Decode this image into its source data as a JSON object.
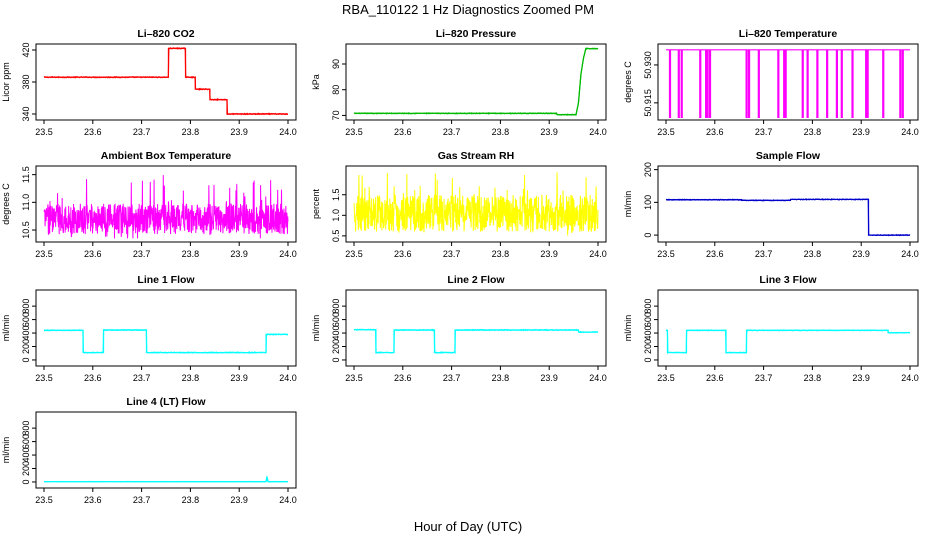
{
  "figure": {
    "title": "RBA_110122  1 Hz Diagnostics Zoomed PM",
    "xlabel": "Hour of Day (UTC)"
  },
  "chart_data": [
    {
      "type": "line",
      "title": "Li–820 CO2",
      "ylabel": "Licor ppm",
      "color": "#ff0000",
      "xlim": [
        23.5,
        24.0
      ],
      "ylim": [
        335,
        425
      ],
      "yticks": [
        340,
        380,
        420
      ],
      "ytick_labels": [
        "340",
        "380",
        "420"
      ],
      "xticks": [
        23.5,
        23.6,
        23.7,
        23.8,
        23.9,
        24.0
      ],
      "xtick_labels": [
        "23.5",
        "23.6",
        "23.7",
        "23.8",
        "23.9",
        "24.0"
      ],
      "series": [
        {
          "name": "CO2",
          "style": "step",
          "noise": 0.6,
          "x": [
            23.5,
            23.755,
            23.755,
            23.79,
            23.79,
            23.81,
            23.81,
            23.84,
            23.84,
            23.875,
            23.875,
            24.0
          ],
          "y": [
            386,
            386,
            422,
            422,
            386,
            386,
            371,
            371,
            358,
            358,
            340,
            340
          ]
        }
      ]
    },
    {
      "type": "line",
      "title": "Li–820 Pressure",
      "ylabel": "kPa",
      "color": "#00bb00",
      "xlim": [
        23.5,
        24.0
      ],
      "ylim": [
        69,
        97
      ],
      "yticks": [
        70,
        80,
        90
      ],
      "ytick_labels": [
        "70",
        "80",
        "90"
      ],
      "xticks": [
        23.5,
        23.6,
        23.7,
        23.8,
        23.9,
        24.0
      ],
      "xtick_labels": [
        "23.5",
        "23.6",
        "23.7",
        "23.8",
        "23.9",
        "24.0"
      ],
      "series": [
        {
          "name": "Pressure",
          "style": "line",
          "noise": 0.15,
          "x": [
            23.5,
            23.915,
            23.916,
            23.955,
            23.96,
            23.965,
            23.97,
            23.975,
            24.0
          ],
          "y": [
            70.8,
            70.8,
            70.3,
            70.3,
            75,
            86,
            92,
            96,
            96
          ]
        }
      ]
    },
    {
      "type": "line",
      "title": "Li–820 Temperature",
      "ylabel": "degrees C",
      "color": "#ff00ff",
      "xlim": [
        23.5,
        24.0
      ],
      "ylim": [
        50.909,
        50.9375
      ],
      "yticks": [
        50.915,
        50.93
      ],
      "ytick_labels": [
        "50.915",
        "50.930"
      ],
      "xticks": [
        23.5,
        23.6,
        23.7,
        23.8,
        23.9,
        24.0
      ],
      "xtick_labels": [
        "23.5",
        "23.6",
        "23.7",
        "23.8",
        "23.9",
        "24.0"
      ],
      "baseline": 50.936,
      "low_value": 50.909,
      "spike_times": [
        23.508,
        23.526,
        23.532,
        23.57,
        23.582,
        23.585,
        23.59,
        23.665,
        23.67,
        23.69,
        23.73,
        23.742,
        23.745,
        23.78,
        23.79,
        23.81,
        23.83,
        23.85,
        23.86,
        23.882,
        23.91,
        23.913,
        23.945,
        23.98,
        23.985
      ]
    },
    {
      "type": "line",
      "title": "Ambient Box Temperature",
      "ylabel": "degrees C",
      "color": "#ff00ff",
      "xlim": [
        23.5,
        24.0
      ],
      "ylim": [
        10.32,
        11.62
      ],
      "yticks": [
        10.5,
        11.0,
        11.5
      ],
      "ytick_labels": [
        "10.5",
        "11.0",
        "11.5"
      ],
      "xticks": [
        23.5,
        23.6,
        23.7,
        23.8,
        23.9,
        24.0
      ],
      "xtick_labels": [
        "23.5",
        "23.6",
        "23.7",
        "23.8",
        "23.9",
        "24.0"
      ],
      "noise_band": {
        "center": 10.7,
        "min": 10.35,
        "max": 11.6,
        "spread": 0.55
      }
    },
    {
      "type": "line",
      "title": "Gas Stream RH",
      "ylabel": "percent",
      "color": "#ffff00",
      "xlim": [
        23.5,
        24.0
      ],
      "ylim": [
        0.4,
        2.15
      ],
      "yticks": [
        0.5,
        1.0,
        1.5
      ],
      "ytick_labels": [
        "0.5",
        "1.0",
        "1.5"
      ],
      "xticks": [
        23.5,
        23.6,
        23.7,
        23.8,
        23.9,
        24.0
      ],
      "xtick_labels": [
        "23.5",
        "23.6",
        "23.7",
        "23.8",
        "23.9",
        "24.0"
      ],
      "noise_band": {
        "center": 1.05,
        "min": 0.5,
        "max": 2.1,
        "spread": 0.9
      }
    },
    {
      "type": "line",
      "title": "Sample Flow",
      "ylabel": "ml/min",
      "color": "#0000cc",
      "xlim": [
        23.5,
        24.0
      ],
      "ylim": [
        -15,
        205
      ],
      "yticks": [
        0,
        100,
        200
      ],
      "ytick_labels": [
        "0",
        "100",
        "200"
      ],
      "xticks": [
        23.5,
        23.6,
        23.7,
        23.8,
        23.9,
        24.0
      ],
      "xtick_labels": [
        "23.5",
        "23.6",
        "23.7",
        "23.8",
        "23.9",
        "24.0"
      ],
      "series": [
        {
          "name": "Sample Flow",
          "style": "step",
          "noise": 1.2,
          "x": [
            23.5,
            23.655,
            23.655,
            23.755,
            23.755,
            23.915,
            23.915,
            24.0
          ],
          "y": [
            108,
            108,
            106,
            106,
            109,
            109,
            0,
            0
          ]
        }
      ]
    },
    {
      "type": "line",
      "title": "Line 1 Flow",
      "ylabel": "ml/min",
      "color": "#00ffff",
      "xlim": [
        23.5,
        24.0
      ],
      "ylim": [
        -60,
        1010
      ],
      "yticks": [
        0,
        200,
        400,
        600,
        800
      ],
      "ytick_labels": [
        "0",
        "200",
        "400",
        "600",
        "800"
      ],
      "xticks": [
        23.5,
        23.6,
        23.7,
        23.8,
        23.9,
        24.0
      ],
      "xtick_labels": [
        "23.5",
        "23.6",
        "23.7",
        "23.8",
        "23.9",
        "24.0"
      ],
      "series": [
        {
          "name": "Line 1",
          "style": "step",
          "noise": 6,
          "x": [
            23.5,
            23.58,
            23.58,
            23.622,
            23.622,
            23.71,
            23.71,
            23.955,
            23.955,
            24.0
          ],
          "y": [
            440,
            440,
            110,
            110,
            445,
            445,
            110,
            110,
            380,
            380
          ]
        }
      ]
    },
    {
      "type": "line",
      "title": "Line 2 Flow",
      "ylabel": "ml/min",
      "color": "#00ffff",
      "xlim": [
        23.5,
        24.0
      ],
      "ylim": [
        -60,
        1010
      ],
      "yticks": [
        0,
        200,
        400,
        600,
        800
      ],
      "ytick_labels": [
        "0",
        "200",
        "400",
        "600",
        "800"
      ],
      "xticks": [
        23.5,
        23.6,
        23.7,
        23.8,
        23.9,
        24.0
      ],
      "xtick_labels": [
        "23.5",
        "23.6",
        "23.7",
        "23.8",
        "23.9",
        "24.0"
      ],
      "series": [
        {
          "name": "Line 2",
          "style": "step",
          "noise": 6,
          "x": [
            23.5,
            23.545,
            23.545,
            23.582,
            23.582,
            23.665,
            23.665,
            23.707,
            23.707,
            23.96,
            23.96,
            24.0
          ],
          "y": [
            450,
            450,
            110,
            110,
            445,
            445,
            110,
            110,
            445,
            445,
            415,
            415
          ]
        }
      ]
    },
    {
      "type": "line",
      "title": "Line 3 Flow",
      "ylabel": "ml/min",
      "color": "#00ffff",
      "xlim": [
        23.5,
        24.0
      ],
      "ylim": [
        -60,
        1010
      ],
      "yticks": [
        0,
        200,
        400,
        600,
        800
      ],
      "ytick_labels": [
        "0",
        "200",
        "400",
        "600",
        "800"
      ],
      "xticks": [
        23.5,
        23.6,
        23.7,
        23.8,
        23.9,
        24.0
      ],
      "xtick_labels": [
        "23.5",
        "23.6",
        "23.7",
        "23.8",
        "23.9",
        "24.0"
      ],
      "series": [
        {
          "name": "Line 3",
          "style": "step",
          "noise": 5,
          "x": [
            23.5,
            23.503,
            23.503,
            23.542,
            23.542,
            23.623,
            23.623,
            23.665,
            23.665,
            23.955,
            23.955,
            24.0
          ],
          "y": [
            440,
            440,
            110,
            110,
            440,
            440,
            110,
            110,
            440,
            440,
            405,
            405
          ]
        }
      ]
    },
    {
      "type": "line",
      "title": "Line 4 (LT) Flow",
      "ylabel": "ml/min",
      "color": "#00ffff",
      "xlim": [
        23.5,
        24.0
      ],
      "ylim": [
        -60,
        1010
      ],
      "yticks": [
        0,
        200,
        400,
        600,
        800
      ],
      "ytick_labels": [
        "0",
        "200",
        "400",
        "600",
        "800"
      ],
      "xticks": [
        23.5,
        23.6,
        23.7,
        23.8,
        23.9,
        24.0
      ],
      "xtick_labels": [
        "23.5",
        "23.6",
        "23.7",
        "23.8",
        "23.9",
        "24.0"
      ],
      "series": [
        {
          "name": "Line 4",
          "style": "line",
          "noise": 2,
          "x": [
            23.5,
            23.955,
            23.957,
            23.959,
            23.961,
            24.0
          ],
          "y": [
            5,
            5,
            80,
            5,
            5,
            5
          ]
        }
      ]
    }
  ]
}
